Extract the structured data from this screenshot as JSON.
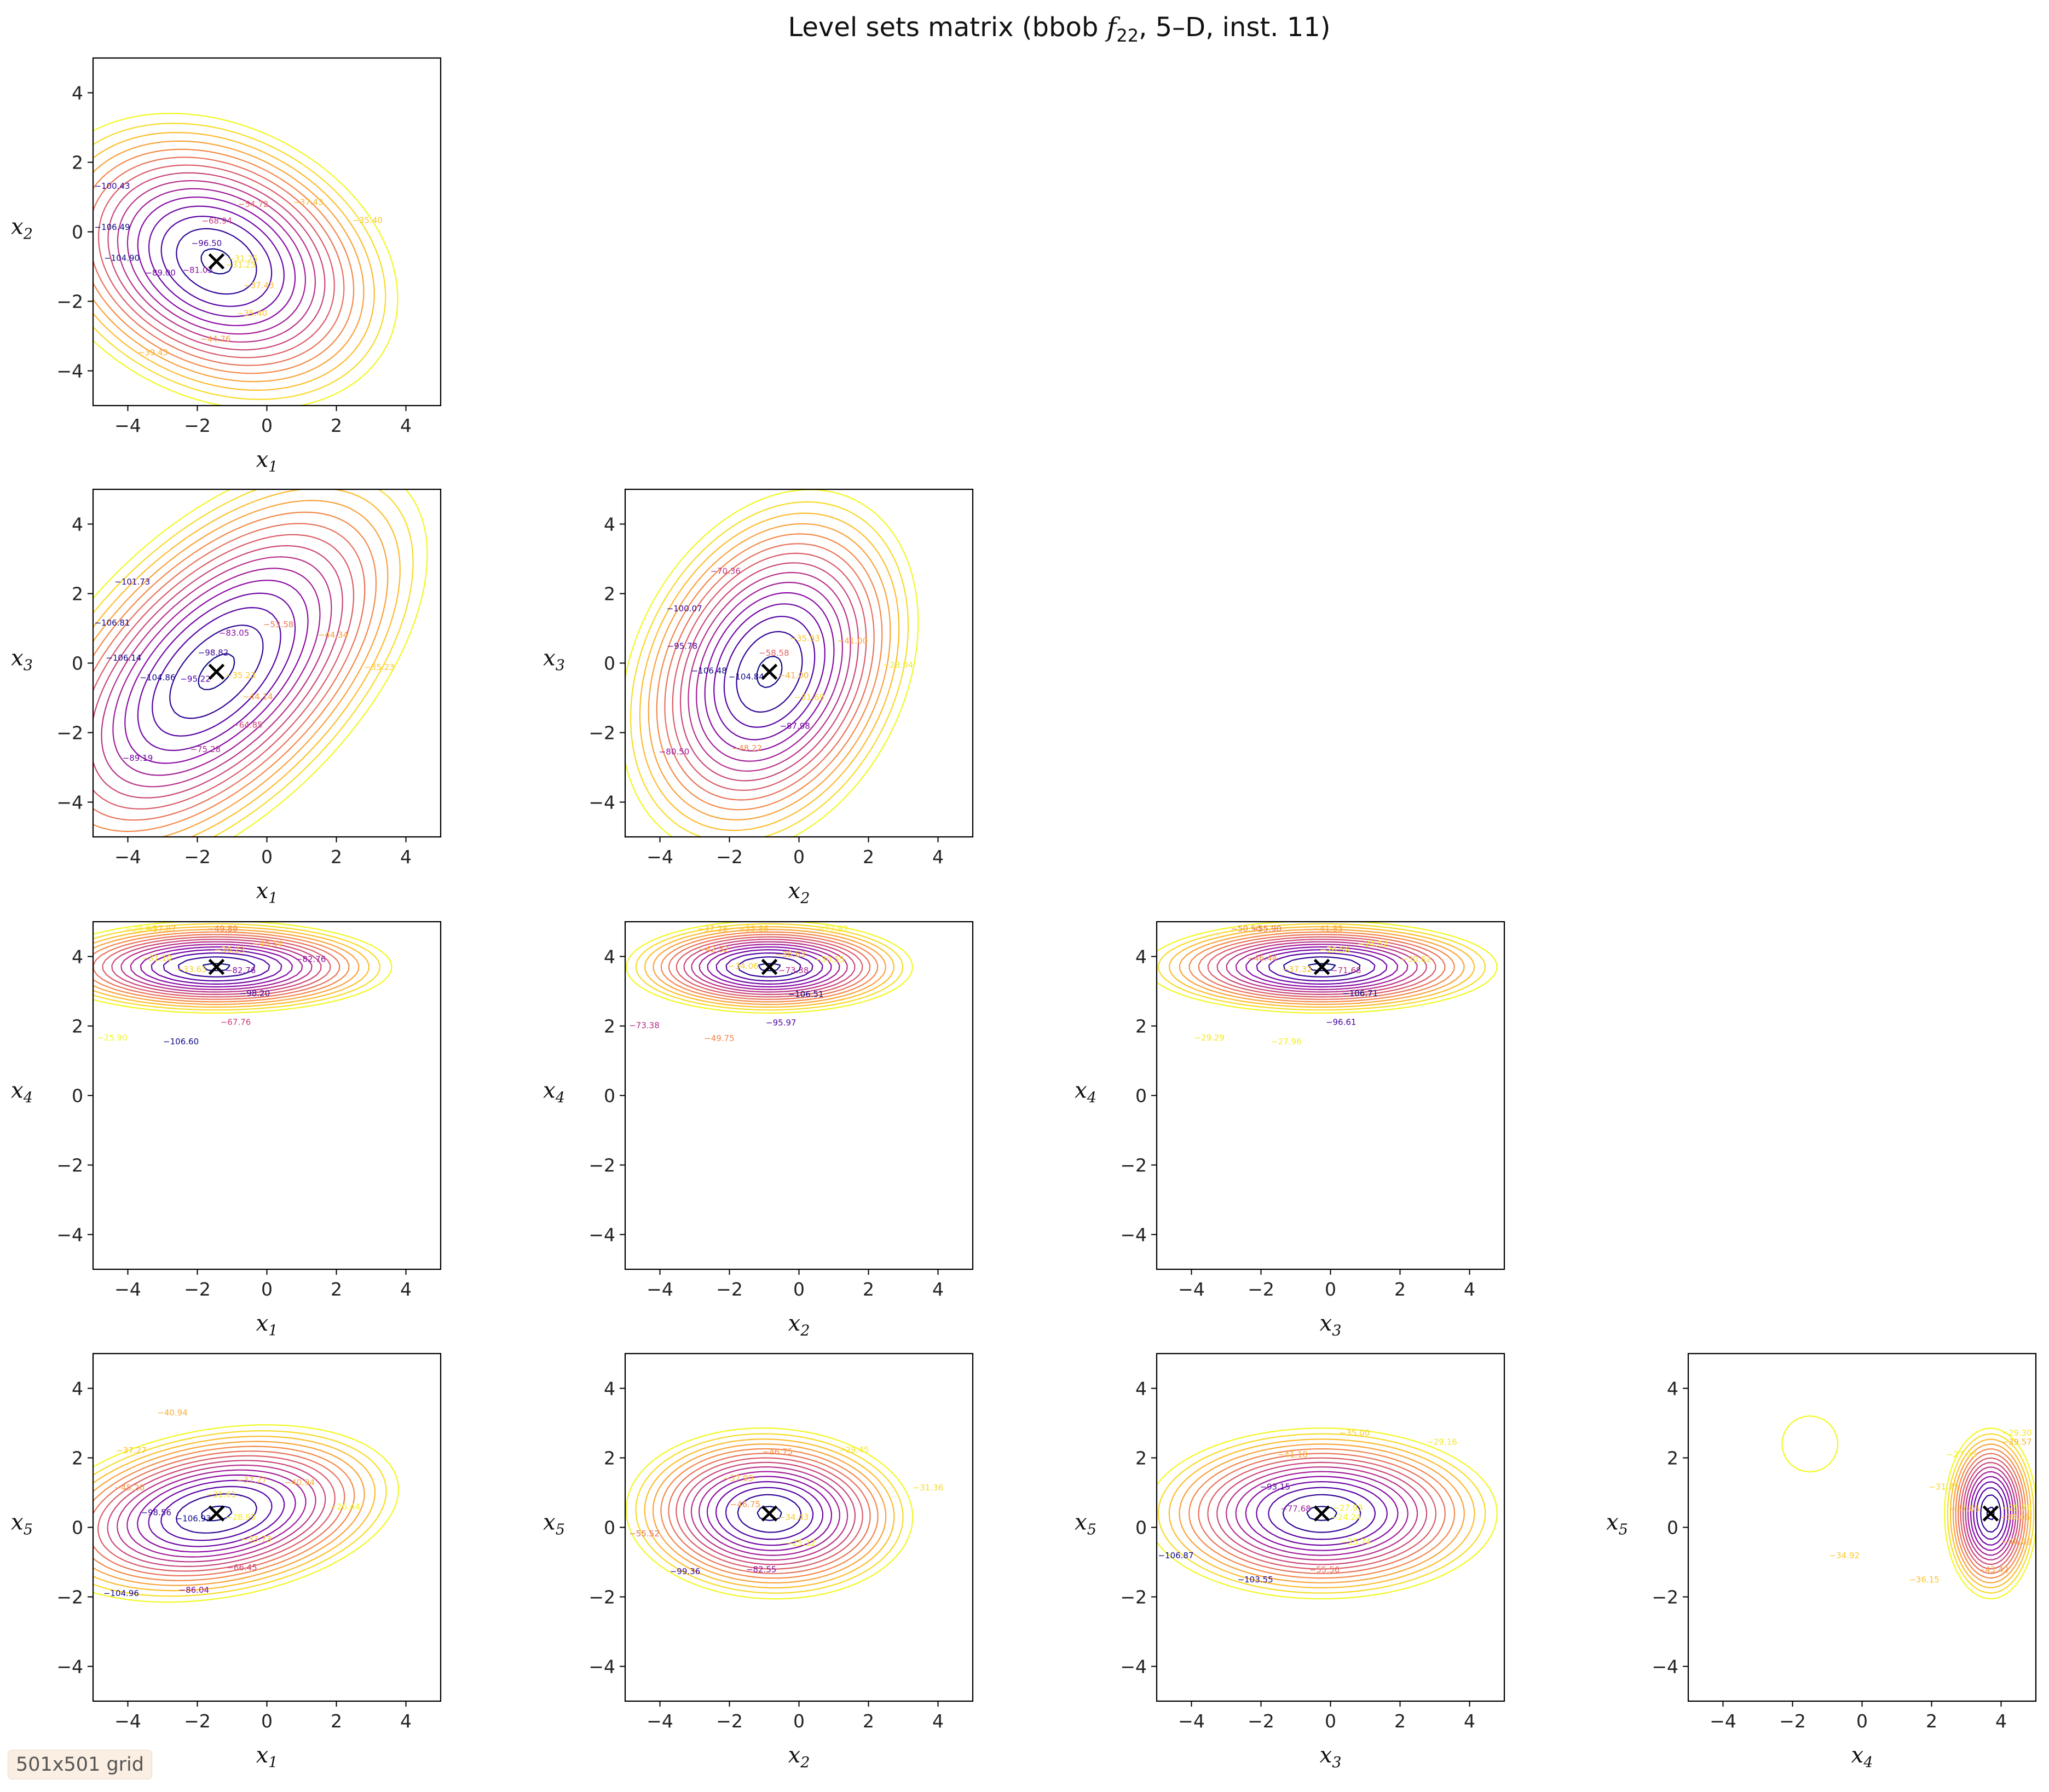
{
  "figure": {
    "title": "Level sets matrix (bbob f22, 5–D, inst. 11)",
    "title_parts": {
      "prefix": "Level sets matrix (bbob ",
      "func": "f",
      "func_sub": "22",
      "suffix": ", 5–D, inst. 11)"
    },
    "badge": "501x501 grid",
    "colormap": "plasma",
    "marker_color": "#000000"
  },
  "chart_data": {
    "type": "contour",
    "grid_resolution": "501x501",
    "function": "bbob f22",
    "dimension": 5,
    "instance": 11,
    "axis_range": [
      -5,
      5
    ],
    "ticks": [
      -4,
      -2,
      0,
      2,
      4
    ],
    "optimum": {
      "x1": -1.45,
      "x2": -0.85,
      "x3": -0.25,
      "x4": 3.7,
      "x5": 0.4
    },
    "panels": [
      {
        "row": 2,
        "col": 1,
        "xvar": "x",
        "xsub": "1",
        "yvar": "x",
        "ysub": "2",
        "ix": 0,
        "iy": 1,
        "marker": [
          -1.45,
          -0.85
        ],
        "contour_labels": [
          "−31.25",
          "−37.43",
          "−35.40",
          "−44.76",
          "−39.43",
          "−81.03",
          "−89.00",
          "−104.90",
          "−106.49",
          "−100.43",
          "−96.50",
          "−68.94",
          "−54.72",
          "−37.43",
          "−35.40",
          "−31.25"
        ]
      },
      {
        "row": 3,
        "col": 1,
        "xvar": "x",
        "xsub": "1",
        "yvar": "x",
        "ysub": "3",
        "ix": 0,
        "iy": 2,
        "marker": [
          -1.45,
          -0.25
        ],
        "contour_labels": [
          "−35.23",
          "−44.14",
          "−64.85",
          "−75.28",
          "−89.19",
          "−95.22",
          "−104.86",
          "−106.14",
          "−106.81",
          "−101.73",
          "−98.82",
          "−83.05",
          "−53.58",
          "−44.34",
          "−35.23"
        ]
      },
      {
        "row": 3,
        "col": 2,
        "xvar": "x",
        "xsub": "2",
        "yvar": "x",
        "ysub": "3",
        "ix": 1,
        "iy": 2,
        "marker": [
          -0.85,
          -0.25
        ],
        "contour_labels": [
          "−41.00",
          "−31.69",
          "−87.98",
          "−48.22",
          "−80.50",
          "−104.84",
          "−106.48",
          "−95.78",
          "−100.07",
          "−70.36",
          "−58.58",
          "−35.93",
          "−41.00",
          "−28.04"
        ]
      },
      {
        "row": 4,
        "col": 1,
        "xvar": "x",
        "xsub": "1",
        "yvar": "x",
        "ysub": "4",
        "ix": 0,
        "iy": 3,
        "marker": [
          -1.45,
          3.7
        ],
        "contour_labels": [
          "−82.76",
          "−98.20",
          "−67.76",
          "−106.60",
          "−25.90",
          "−33.63",
          "−31.10",
          "−28.06",
          "−37.87",
          "−49.89",
          "−36.23",
          "−40.54",
          "−82.76"
        ]
      },
      {
        "row": 4,
        "col": 2,
        "xvar": "x",
        "xsub": "2",
        "yvar": "x",
        "ysub": "4",
        "ix": 1,
        "iy": 3,
        "marker": [
          -0.85,
          3.7
        ],
        "contour_labels": [
          "−73.38",
          "−106.51",
          "−95.97",
          "−49.75",
          "−73.38",
          "−34.06",
          "−42.52",
          "−37.28",
          "−35.86",
          "−27.92",
          "−38.63",
          "−30.55"
        ]
      },
      {
        "row": 4,
        "col": 3,
        "xvar": "x",
        "xsub": "3",
        "yvar": "x",
        "ysub": "4",
        "ix": 2,
        "iy": 3,
        "marker": [
          -0.25,
          3.7
        ],
        "contour_labels": [
          "−71.68",
          "−106.71",
          "−96.61",
          "−27.96",
          "−29.29",
          "−37.32",
          "−46.44",
          "−50.50",
          "−55.90",
          "−41.85",
          "−26.56",
          "−24.52",
          "−30.62"
        ]
      },
      {
        "row": 5,
        "col": 1,
        "xvar": "x",
        "xsub": "1",
        "yvar": "x",
        "ysub": "5",
        "ix": 0,
        "iy": 4,
        "marker": [
          -1.45,
          0.4
        ],
        "contour_labels": [
          "−28.95",
          "−33.73",
          "−66.45",
          "−86.04",
          "−104.96",
          "−106.93",
          "−98.56",
          "−45.20",
          "−37.27",
          "−40.94",
          "−31.61",
          "−37.27",
          "−40.94",
          "−26.44"
        ]
      },
      {
        "row": 5,
        "col": 2,
        "xvar": "x",
        "xsub": "2",
        "yvar": "x",
        "ysub": "5",
        "ix": 1,
        "iy": 4,
        "marker": [
          -0.85,
          0.4
        ],
        "contour_labels": [
          "−34.43",
          "−25.12",
          "−82.55",
          "−99.36",
          "−55.52",
          "−46.75",
          "−37.99",
          "−46.75",
          "−29.45",
          "−31.36"
        ]
      },
      {
        "row": 5,
        "col": 3,
        "xvar": "x",
        "xsub": "3",
        "yvar": "x",
        "ysub": "5",
        "ix": 2,
        "iy": 4,
        "marker": [
          -0.25,
          0.4
        ],
        "contour_labels": [
          "−24.24",
          "−25.74",
          "−55.56",
          "−103.55",
          "−106.87",
          "−77.68",
          "−93.15",
          "−41.18",
          "−35.00",
          "−29.16",
          "−27.93"
        ]
      },
      {
        "row": 5,
        "col": 4,
        "xvar": "x",
        "xsub": "4",
        "yvar": "x",
        "ysub": "5",
        "ix": 3,
        "iy": 4,
        "marker": [
          3.7,
          0.4
        ],
        "contour_labels": [
          "−38.06",
          "−40.09",
          "−43.42",
          "−36.15",
          "−34.92",
          "−37.05",
          "−31.75",
          "−27.93",
          "−29.30",
          "−39.57",
          "−25.76"
        ]
      }
    ]
  }
}
